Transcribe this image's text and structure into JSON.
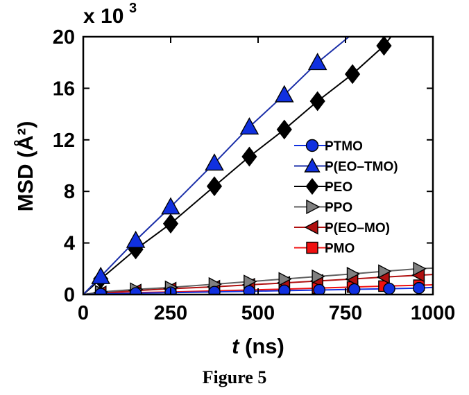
{
  "caption": "Figure 5",
  "chart_data": {
    "type": "scatter",
    "xlabel_italic": "t",
    "xlabel_rest": " (ns)",
    "ylabel": "MSD (Å²)",
    "y_multiplier": "x 10³",
    "xlim": [
      0,
      1000
    ],
    "ylim": [
      0,
      20
    ],
    "x_ticks": [
      0,
      250,
      500,
      750,
      1000
    ],
    "y_ticks": [
      0,
      4,
      8,
      12,
      16,
      20
    ],
    "grid": false,
    "legend_position": "center-right",
    "series": [
      {
        "name": "PTMO",
        "marker": "circle",
        "color": "#1030e0",
        "line_color": "#1030e0",
        "x": [
          50,
          150,
          250,
          375,
          475,
          575,
          675,
          775,
          875,
          960
        ],
        "y": [
          0.05,
          0.1,
          0.15,
          0.2,
          0.25,
          0.3,
          0.35,
          0.4,
          0.45,
          0.5
        ],
        "fit_end": [
          1000,
          0.55
        ]
      },
      {
        "name": "P(EO–TMO)",
        "marker": "triangle-up",
        "color": "#1030e0",
        "line_color": "#1a2ea8",
        "x": [
          50,
          150,
          250,
          375,
          475,
          575,
          670
        ],
        "y": [
          1.4,
          4.2,
          6.8,
          10.2,
          13.0,
          15.5,
          18.0
        ],
        "fit_end": [
          760,
          20.0
        ]
      },
      {
        "name": "PEO",
        "marker": "diamond",
        "color": "#000000",
        "line_color": "#000000",
        "x": [
          50,
          150,
          250,
          375,
          475,
          575,
          670,
          770,
          860
        ],
        "y": [
          1.2,
          3.5,
          5.5,
          8.4,
          10.7,
          12.8,
          15.0,
          17.1,
          19.3
        ],
        "fit_end": [
          880,
          20.0
        ]
      },
      {
        "name": "PPO",
        "marker": "triangle-right",
        "color": "#808080",
        "line_color": "#606060",
        "x": [
          50,
          150,
          250,
          375,
          475,
          575,
          670,
          770,
          860,
          960
        ],
        "y": [
          0.2,
          0.4,
          0.55,
          0.8,
          1.0,
          1.2,
          1.4,
          1.6,
          1.8,
          2.0
        ],
        "fit_end": [
          1000,
          2.05
        ]
      },
      {
        "name": "P(EO–MO)",
        "marker": "triangle-left",
        "color": "#b01010",
        "line_color": "#b01010",
        "x": [
          50,
          150,
          250,
          375,
          475,
          575,
          670,
          770,
          860,
          960
        ],
        "y": [
          0.15,
          0.3,
          0.45,
          0.6,
          0.75,
          0.9,
          1.05,
          1.2,
          1.35,
          1.5
        ],
        "fit_end": [
          1000,
          1.55
        ]
      },
      {
        "name": "PMO",
        "marker": "square",
        "color": "#f01010",
        "line_color": "#f01010",
        "x": [
          50,
          150,
          250,
          375,
          475,
          575,
          670,
          770,
          860,
          960
        ],
        "y": [
          0.1,
          0.15,
          0.2,
          0.28,
          0.35,
          0.42,
          0.5,
          0.58,
          0.65,
          0.72
        ],
        "fit_end": [
          1000,
          0.75
        ]
      }
    ]
  }
}
